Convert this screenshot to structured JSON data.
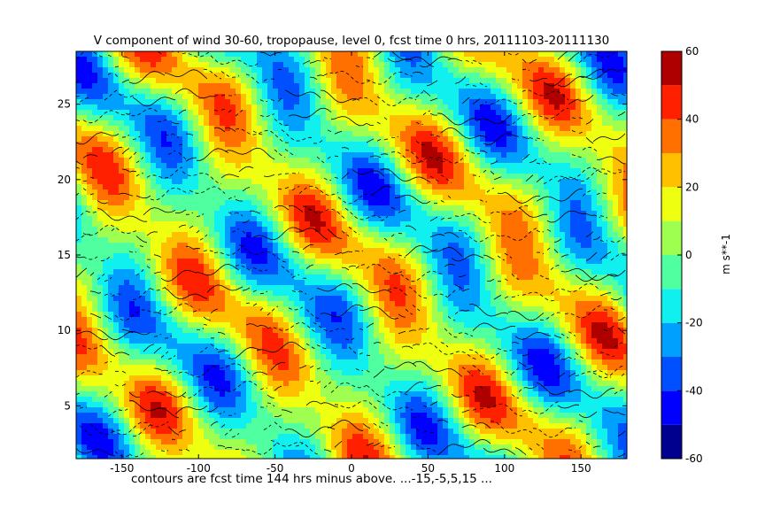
{
  "chart_data": {
    "type": "heatmap",
    "title": "V component of wind 30-60, tropopause, level 0, fcst time 0 hrs, 20111103-20111130",
    "caption": "contours are fcst time 144 hrs minus above. ...-15,-5,5,15 ...",
    "x_ticks": [
      -150,
      -100,
      -50,
      0,
      50,
      100,
      150
    ],
    "y_ticks": [
      5,
      10,
      15,
      20,
      25
    ],
    "xlim": [
      -180,
      180
    ],
    "ylim": [
      28.5,
      1.5
    ],
    "colorbar": {
      "label": "m s**-1",
      "ticks": [
        -60,
        -40,
        -20,
        0,
        20,
        40,
        60
      ],
      "range": [
        -60,
        60
      ],
      "levels": [
        -60,
        -50,
        -40,
        -30,
        -20,
        -10,
        0,
        10,
        20,
        30,
        40,
        50,
        60
      ],
      "colors": [
        "#00008f",
        "#0000ff",
        "#0050ff",
        "#00a0ff",
        "#10f0ee",
        "#50ff9f",
        "#9fff50",
        "#eeff10",
        "#ffc000",
        "#ff7000",
        "#ff2000",
        "#af0000"
      ]
    },
    "contour_levels": [
      -15,
      -5,
      5,
      15
    ]
  }
}
